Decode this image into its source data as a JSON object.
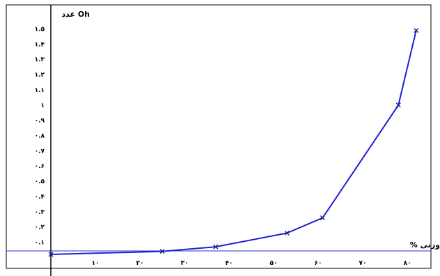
{
  "chart_data": {
    "type": "line",
    "ylabel": "عدد Oh",
    "xlabel": "% وزنی",
    "xlim": [
      0,
      82
    ],
    "ylim": [
      0,
      1.55
    ],
    "x_ticks": [
      10,
      20,
      30,
      40,
      50,
      60,
      70,
      80
    ],
    "x_tick_labels": [
      "۱۰",
      "۲۰",
      "۳۰",
      "۴۰",
      "۵۰",
      "۶۰",
      "۷۰",
      "۸۰"
    ],
    "y_ticks": [
      0.1,
      0.2,
      0.3,
      0.4,
      0.5,
      0.6,
      0.7,
      0.8,
      0.9,
      1.0,
      1.1,
      1.2,
      1.3,
      1.4,
      1.5
    ],
    "y_tick_labels": [
      "۰.۱",
      "۰.۲",
      "۰.۳",
      "۰.۴",
      "۰.۵",
      "۰.۶",
      "۰.۷",
      "۰.۸",
      "۰.۹",
      "۱",
      "۱.۱",
      "۱.۲",
      "۱.۳",
      "۱.۴",
      "۱.۵"
    ],
    "series": [
      {
        "color": "#1f1fd6",
        "marker": "x",
        "x": [
          0,
          25,
          37,
          53,
          61,
          78,
          82
        ],
        "y": [
          0.02,
          0.04,
          0.07,
          0.16,
          0.26,
          1.0,
          1.49
        ]
      }
    ],
    "grid": false
  }
}
